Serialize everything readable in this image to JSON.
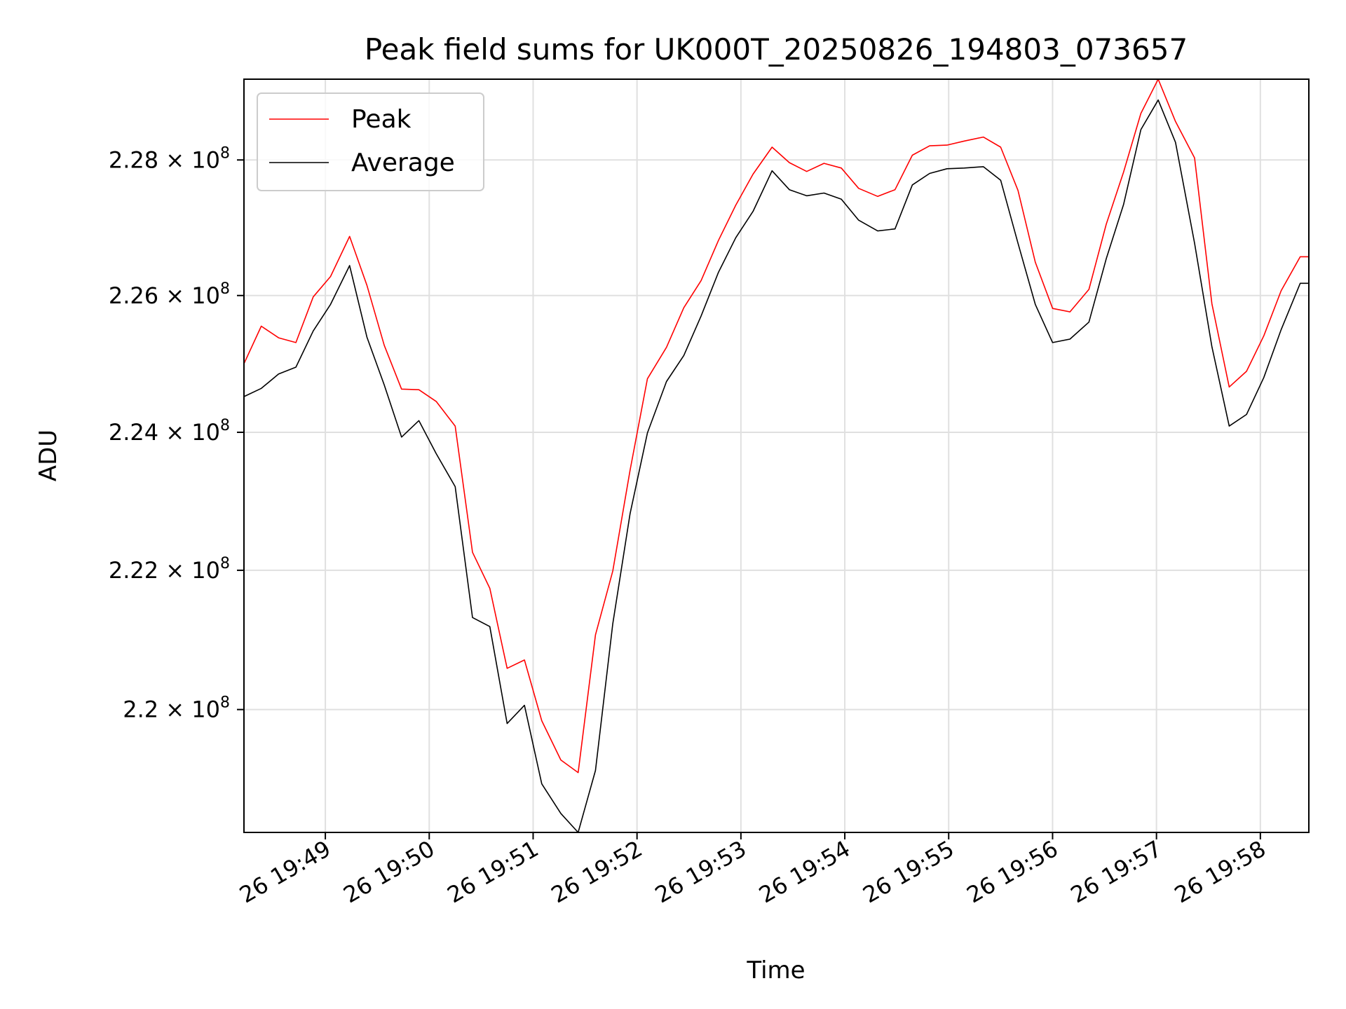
{
  "chart_data": {
    "type": "line",
    "title": "Peak field sums for UK000T_20250826_194803_073657",
    "xlabel": "Time",
    "ylabel": "ADU",
    "x_ticks": [
      "26 19:49",
      "26 19:50",
      "26 19:51",
      "26 19:52",
      "26 19:53",
      "26 19:54",
      "26 19:55",
      "26 19:56",
      "26 19:57",
      "26 19:58"
    ],
    "y_ticks": [
      {
        "value": 220000000,
        "mantissa": "2.2",
        "exponent": "8"
      },
      {
        "value": 222000000,
        "mantissa": "2.22",
        "exponent": "8"
      },
      {
        "value": 224000000,
        "mantissa": "2.24",
        "exponent": "8"
      },
      {
        "value": 226000000,
        "mantissa": "2.26",
        "exponent": "8"
      },
      {
        "value": 228000000,
        "mantissa": "2.28",
        "exponent": "8"
      }
    ],
    "x_range": [
      "2025-08-26 19:48:13",
      "2025-08-26 19:58:28"
    ],
    "ylim": [
      218250000,
      229200000
    ],
    "y_scale": "log",
    "grid": true,
    "legend_position": "top-left",
    "x": [
      "19:48:13",
      "19:48:23",
      "19:48:33",
      "19:48:43",
      "19:48:53",
      "19:49:03",
      "19:49:14",
      "19:49:24",
      "19:49:34",
      "19:49:44",
      "19:49:54",
      "19:50:04",
      "19:50:15",
      "19:50:25",
      "19:50:35",
      "19:50:45",
      "19:50:55",
      "19:51:05",
      "19:51:16",
      "19:51:26",
      "19:51:36",
      "19:51:46",
      "19:51:56",
      "19:52:06",
      "19:52:17",
      "19:52:27",
      "19:52:37",
      "19:52:47",
      "19:52:57",
      "19:53:07",
      "19:53:18",
      "19:53:28",
      "19:53:38",
      "19:53:48",
      "19:53:58",
      "19:54:08",
      "19:54:19",
      "19:54:29",
      "19:54:39",
      "19:54:49",
      "19:54:59",
      "19:55:09",
      "19:55:20",
      "19:55:30",
      "19:55:40",
      "19:55:50",
      "19:56:00",
      "19:56:10",
      "19:56:21",
      "19:56:31",
      "19:56:41",
      "19:56:51",
      "19:57:01",
      "19:57:11",
      "19:57:22",
      "19:57:32",
      "19:57:42",
      "19:57:52",
      "19:58:02",
      "19:58:12",
      "19:58:23",
      "19:58:28"
    ],
    "series": [
      {
        "name": "Peak",
        "color": "#ff0000",
        "values": [
          225000000,
          225550000,
          225380000,
          225310000,
          225980000,
          226280000,
          226870000,
          226150000,
          225270000,
          224630000,
          224620000,
          224450000,
          224090000,
          222260000,
          221740000,
          220590000,
          220710000,
          219840000,
          219280000,
          219100000,
          221070000,
          221990000,
          223450000,
          224780000,
          225240000,
          225820000,
          226220000,
          226810000,
          227330000,
          227790000,
          228190000,
          227960000,
          227830000,
          227950000,
          227880000,
          227580000,
          227460000,
          227560000,
          228070000,
          228210000,
          228220000,
          228280000,
          228340000,
          228190000,
          227550000,
          226490000,
          225810000,
          225760000,
          226090000,
          227050000,
          227820000,
          228690000,
          229200000,
          228570000,
          228030000,
          225880000,
          224660000,
          224890000,
          225410000,
          226070000,
          226570000,
          226570000
        ]
      },
      {
        "name": "Average",
        "color": "#000000",
        "values": [
          224520000,
          224640000,
          224850000,
          224950000,
          225480000,
          225870000,
          226440000,
          225390000,
          224690000,
          223930000,
          224170000,
          223690000,
          223210000,
          221320000,
          221190000,
          219800000,
          220060000,
          218940000,
          218520000,
          218250000,
          219130000,
          221230000,
          222820000,
          223990000,
          224740000,
          225120000,
          225700000,
          226340000,
          226850000,
          227240000,
          227840000,
          227560000,
          227470000,
          227510000,
          227420000,
          227110000,
          226950000,
          226980000,
          227630000,
          227800000,
          227870000,
          227880000,
          227900000,
          227700000,
          226770000,
          225870000,
          225310000,
          225360000,
          225610000,
          226540000,
          227340000,
          228450000,
          228890000,
          228260000,
          226770000,
          225250000,
          224090000,
          224260000,
          224800000,
          225500000,
          226180000,
          226180000
        ]
      }
    ]
  }
}
